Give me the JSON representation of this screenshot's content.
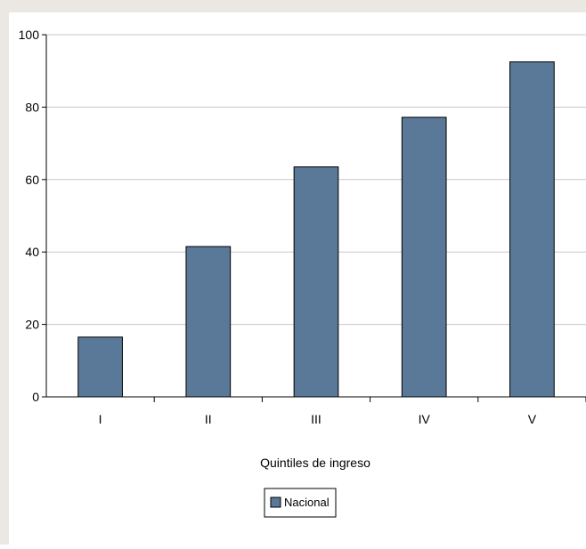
{
  "chart_data": {
    "type": "bar",
    "title": "",
    "xlabel": "Quintiles de ingreso",
    "ylabel": "",
    "categories": [
      "I",
      "II",
      "III",
      "IV",
      "V"
    ],
    "series": [
      {
        "name": "Nacional",
        "values": [
          16.5,
          41.5,
          63.5,
          77.2,
          92.5
        ]
      }
    ],
    "ylim": [
      0,
      100
    ],
    "yticks": [
      0,
      20,
      40,
      60,
      80,
      100
    ],
    "grid": true,
    "legend_position": "bottom-center",
    "bar_color": "#5a7898",
    "gridline_color": "#c8c8c8"
  }
}
